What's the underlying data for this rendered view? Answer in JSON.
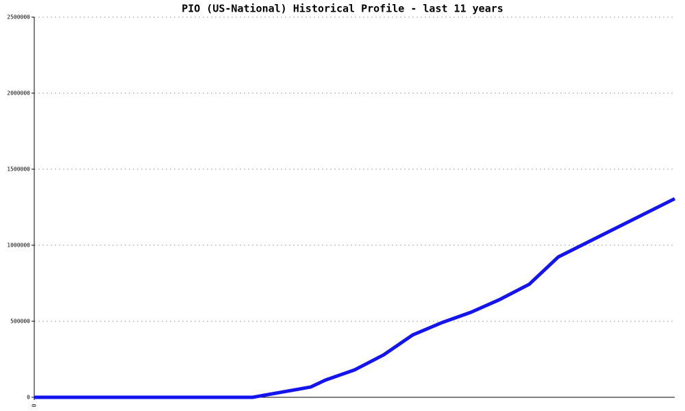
{
  "chart_data": {
    "type": "line",
    "title": "PIO (US-National) Historical Profile - last 11 years",
    "x": [
      0,
      3.75,
      4.75,
      5,
      5.5,
      6,
      6.5,
      7,
      7.5,
      8,
      8.5,
      9,
      11
    ],
    "series": [
      {
        "color": "#1414ee",
        "values": [
          0,
          0,
          68000,
          113000,
          180000,
          279000,
          410000,
          491000,
          559000,
          644000,
          743000,
          923000,
          1306000
        ]
      }
    ],
    "xlim": [
      0,
      11
    ],
    "xticks": [
      0
    ],
    "ylim": [
      0,
      2500000
    ],
    "yticks": [
      0,
      500000,
      1000000,
      1500000,
      2000000,
      2500000
    ],
    "grid": true
  }
}
